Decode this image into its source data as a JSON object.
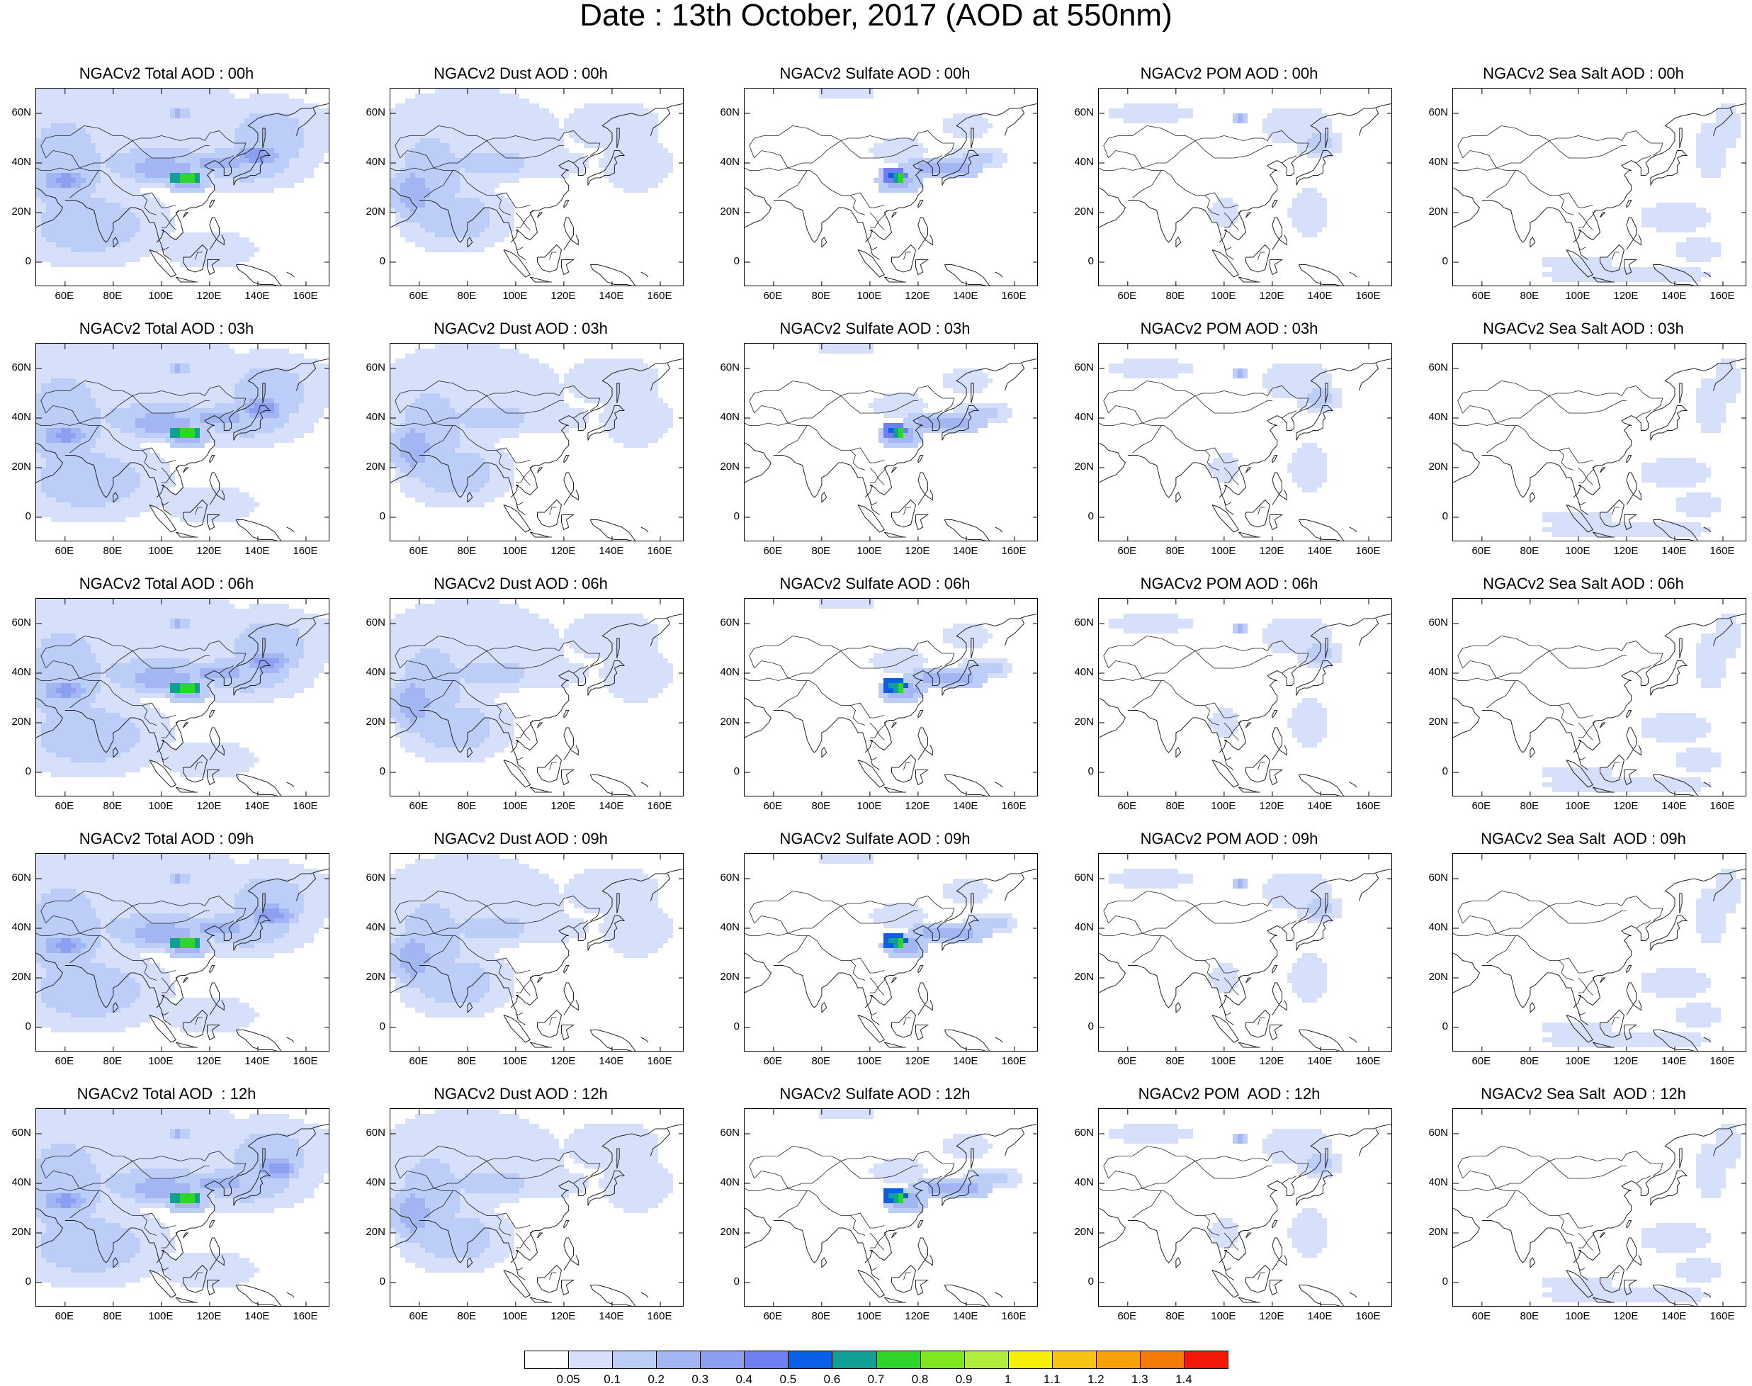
{
  "title": "Date : 13th October, 2017 (AOD at 550nm)",
  "x_tick_labels": [
    "60E",
    "80E",
    "100E",
    "120E",
    "140E",
    "160E"
  ],
  "y_tick_labels": [
    "60N",
    "40N",
    "20N",
    "0"
  ],
  "panels": [
    {
      "title": "NGACv2 Total AOD : 00h",
      "species": "total",
      "hour": 0
    },
    {
      "title": "NGACv2 Dust AOD : 00h",
      "species": "dust",
      "hour": 0
    },
    {
      "title": "NGACv2 Sulfate AOD : 00h",
      "species": "sulfate",
      "hour": 0
    },
    {
      "title": "NGACv2 POM AOD : 00h",
      "species": "pom",
      "hour": 0
    },
    {
      "title": "NGACv2 Sea Salt AOD : 00h",
      "species": "seasalt",
      "hour": 0
    },
    {
      "title": "NGACv2 Total AOD : 03h",
      "species": "total",
      "hour": 3
    },
    {
      "title": "NGACv2 Dust AOD : 03h",
      "species": "dust",
      "hour": 3
    },
    {
      "title": "NGACv2 Sulfate AOD : 03h",
      "species": "sulfate",
      "hour": 3
    },
    {
      "title": "NGACv2 POM AOD : 03h",
      "species": "pom",
      "hour": 3
    },
    {
      "title": "NGACv2 Sea Salt AOD : 03h",
      "species": "seasalt",
      "hour": 3
    },
    {
      "title": "NGACv2 Total AOD : 06h",
      "species": "total",
      "hour": 6
    },
    {
      "title": "NGACv2 Dust AOD : 06h",
      "species": "dust",
      "hour": 6
    },
    {
      "title": "NGACv2 Sulfate AOD : 06h",
      "species": "sulfate",
      "hour": 6
    },
    {
      "title": "NGACv2 POM AOD : 06h",
      "species": "pom",
      "hour": 6
    },
    {
      "title": "NGACv2 Sea Salt AOD : 06h",
      "species": "seasalt",
      "hour": 6
    },
    {
      "title": "NGACv2 Total AOD : 09h",
      "species": "total",
      "hour": 9
    },
    {
      "title": "NGACv2 Dust AOD : 09h",
      "species": "dust",
      "hour": 9
    },
    {
      "title": "NGACv2 Sulfate AOD : 09h",
      "species": "sulfate",
      "hour": 9
    },
    {
      "title": "NGACv2 POM AOD : 09h",
      "species": "pom",
      "hour": 9
    },
    {
      "title": "NGACv2 Sea Salt  AOD : 09h",
      "species": "seasalt",
      "hour": 9
    },
    {
      "title": "NGACv2 Total AOD  : 12h",
      "species": "total",
      "hour": 12
    },
    {
      "title": "NGACv2 Dust AOD : 12h",
      "species": "dust",
      "hour": 12
    },
    {
      "title": "NGACv2 Sulfate AOD : 12h",
      "species": "sulfate",
      "hour": 12
    },
    {
      "title": "NGACv2 POM  AOD : 12h",
      "species": "pom",
      "hour": 12
    },
    {
      "title": "NGACv2 Sea Salt  AOD : 12h",
      "species": "seasalt",
      "hour": 12
    }
  ],
  "map_extent": {
    "lon": [
      48,
      170
    ],
    "lat": [
      -10,
      70
    ]
  },
  "colorbar": {
    "labels": [
      "0.05",
      "0.1",
      "0.2",
      "0.3",
      "0.4",
      "0.5",
      "0.6",
      "0.7",
      "0.8",
      "0.9",
      "1",
      "1.1",
      "1.2",
      "1.3",
      "1.4"
    ],
    "colors": [
      "#ffffff",
      "#d6e0fb",
      "#bccdf7",
      "#a3b6f3",
      "#8c9ff0",
      "#6f7ff0",
      "#0a5fe6",
      "#119f96",
      "#2fd52a",
      "#7ee81e",
      "#b2ec3c",
      "#f6ef08",
      "#f8c412",
      "#f8a20a",
      "#f57a08",
      "#f21808"
    ]
  }
}
